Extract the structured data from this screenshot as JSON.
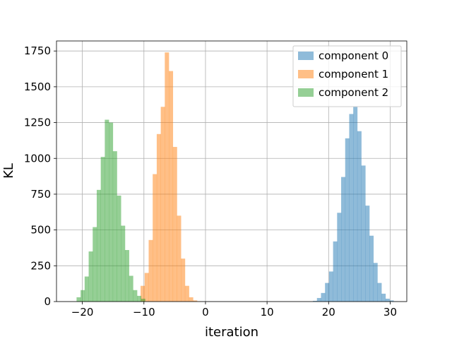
{
  "chart_data": {
    "type": "bar",
    "subtype": "histogram",
    "xlabel": "iteration",
    "ylabel": "KL",
    "xlim": [
      -24.2,
      32.7
    ],
    "ylim": [
      0,
      1820
    ],
    "xticks": [
      -20,
      -10,
      0,
      10,
      20,
      30
    ],
    "yticks": [
      0,
      250,
      500,
      750,
      1000,
      1250,
      1500,
      1750
    ],
    "grid": true,
    "legend_position": "top-right",
    "bar_alpha": 0.5,
    "series": [
      {
        "name": "component 0",
        "color": "#1f77b4",
        "bin_start": 17.45,
        "bin_width": 0.655,
        "counts": [
          5,
          25,
          60,
          130,
          210,
          420,
          620,
          870,
          1140,
          1310,
          1360,
          1190,
          950,
          670,
          460,
          270,
          130,
          55,
          20,
          8,
          2
        ]
      },
      {
        "name": "component 1",
        "color": "#ff7f0e",
        "bin_start": -10.54,
        "bin_width": 0.655,
        "counts": [
          110,
          200,
          430,
          890,
          1170,
          1360,
          1740,
          1610,
          1080,
          600,
          300,
          110,
          30,
          8,
          2
        ]
      },
      {
        "name": "component 2",
        "color": "#2ca02c",
        "bin_start": -20.94,
        "bin_width": 0.655,
        "counts": [
          30,
          80,
          175,
          350,
          520,
          780,
          1010,
          1270,
          1250,
          1050,
          740,
          530,
          360,
          180,
          80,
          40,
          20
        ]
      }
    ]
  }
}
